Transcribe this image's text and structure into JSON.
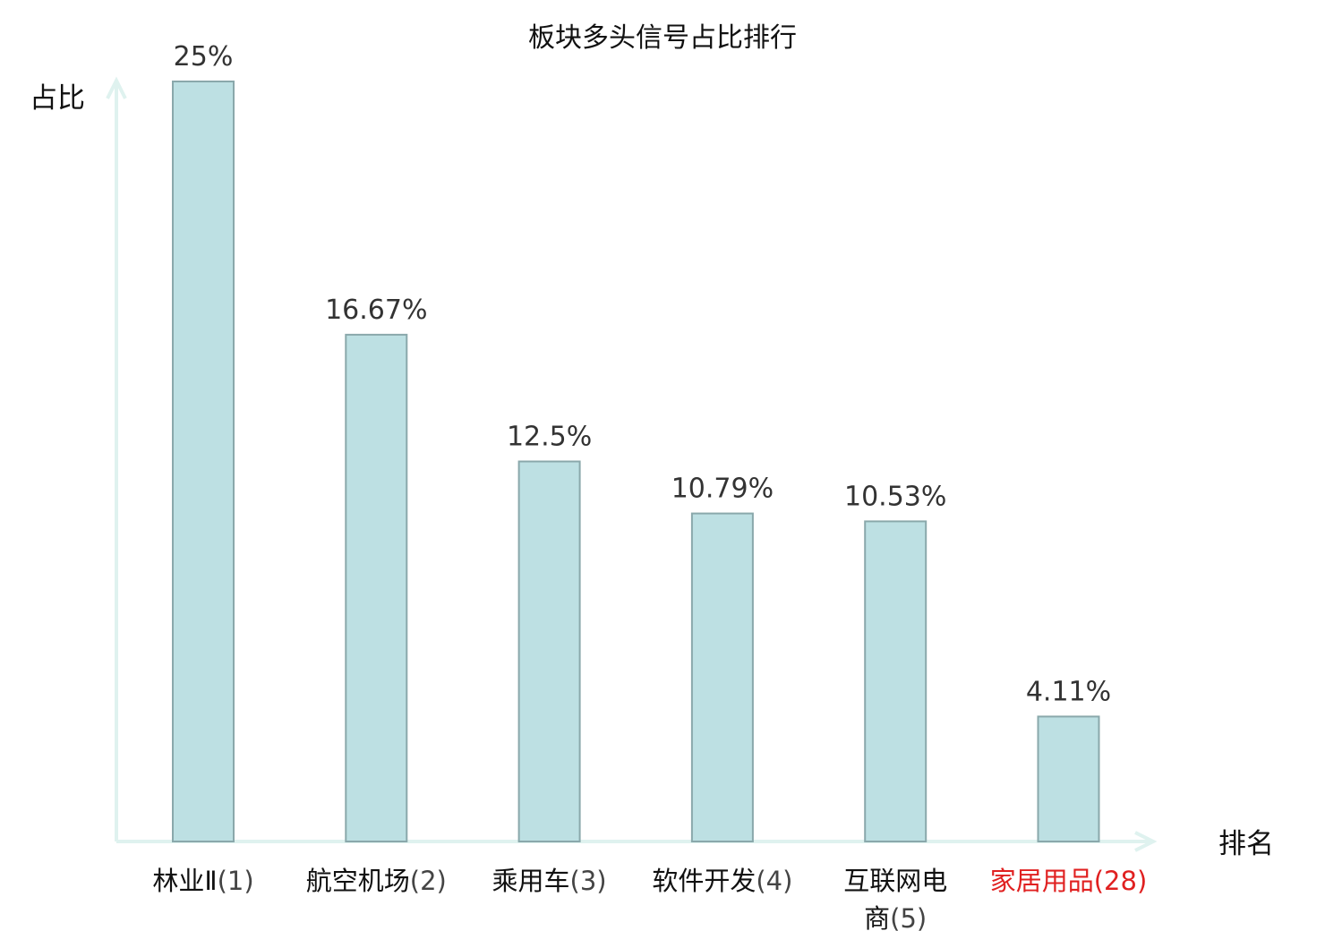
{
  "chart_data": {
    "type": "bar",
    "title": "板块多头信号占比排行",
    "ylabel": "占比",
    "xlabel": "排名",
    "categories": [
      {
        "name": "林业Ⅱ",
        "rank": "(1)",
        "highlight": false
      },
      {
        "name": "航空机场",
        "rank": "(2)",
        "highlight": false
      },
      {
        "name": "乘用车",
        "rank": "(3)",
        "highlight": false
      },
      {
        "name": "软件开发",
        "rank": "(4)",
        "highlight": false
      },
      {
        "name": "互联网电\n商",
        "rank": "(5)",
        "highlight": false
      },
      {
        "name": "家居用品",
        "rank": "(28)",
        "highlight": true
      }
    ],
    "values": [
      25,
      16.67,
      12.5,
      10.79,
      10.53,
      4.11
    ],
    "value_labels": [
      "25%",
      "16.67%",
      "12.5%",
      "10.79%",
      "10.53%",
      "4.11%"
    ],
    "ylim": [
      0,
      25
    ],
    "grid": false,
    "colors": {
      "bar_fill": "#bde0e3",
      "bar_stroke": "#8aa8ab",
      "axis": "#dff2ef",
      "highlight_text": "#e02020",
      "rank_text": "#444444",
      "text": "#111111",
      "value_text": "#333333"
    }
  }
}
